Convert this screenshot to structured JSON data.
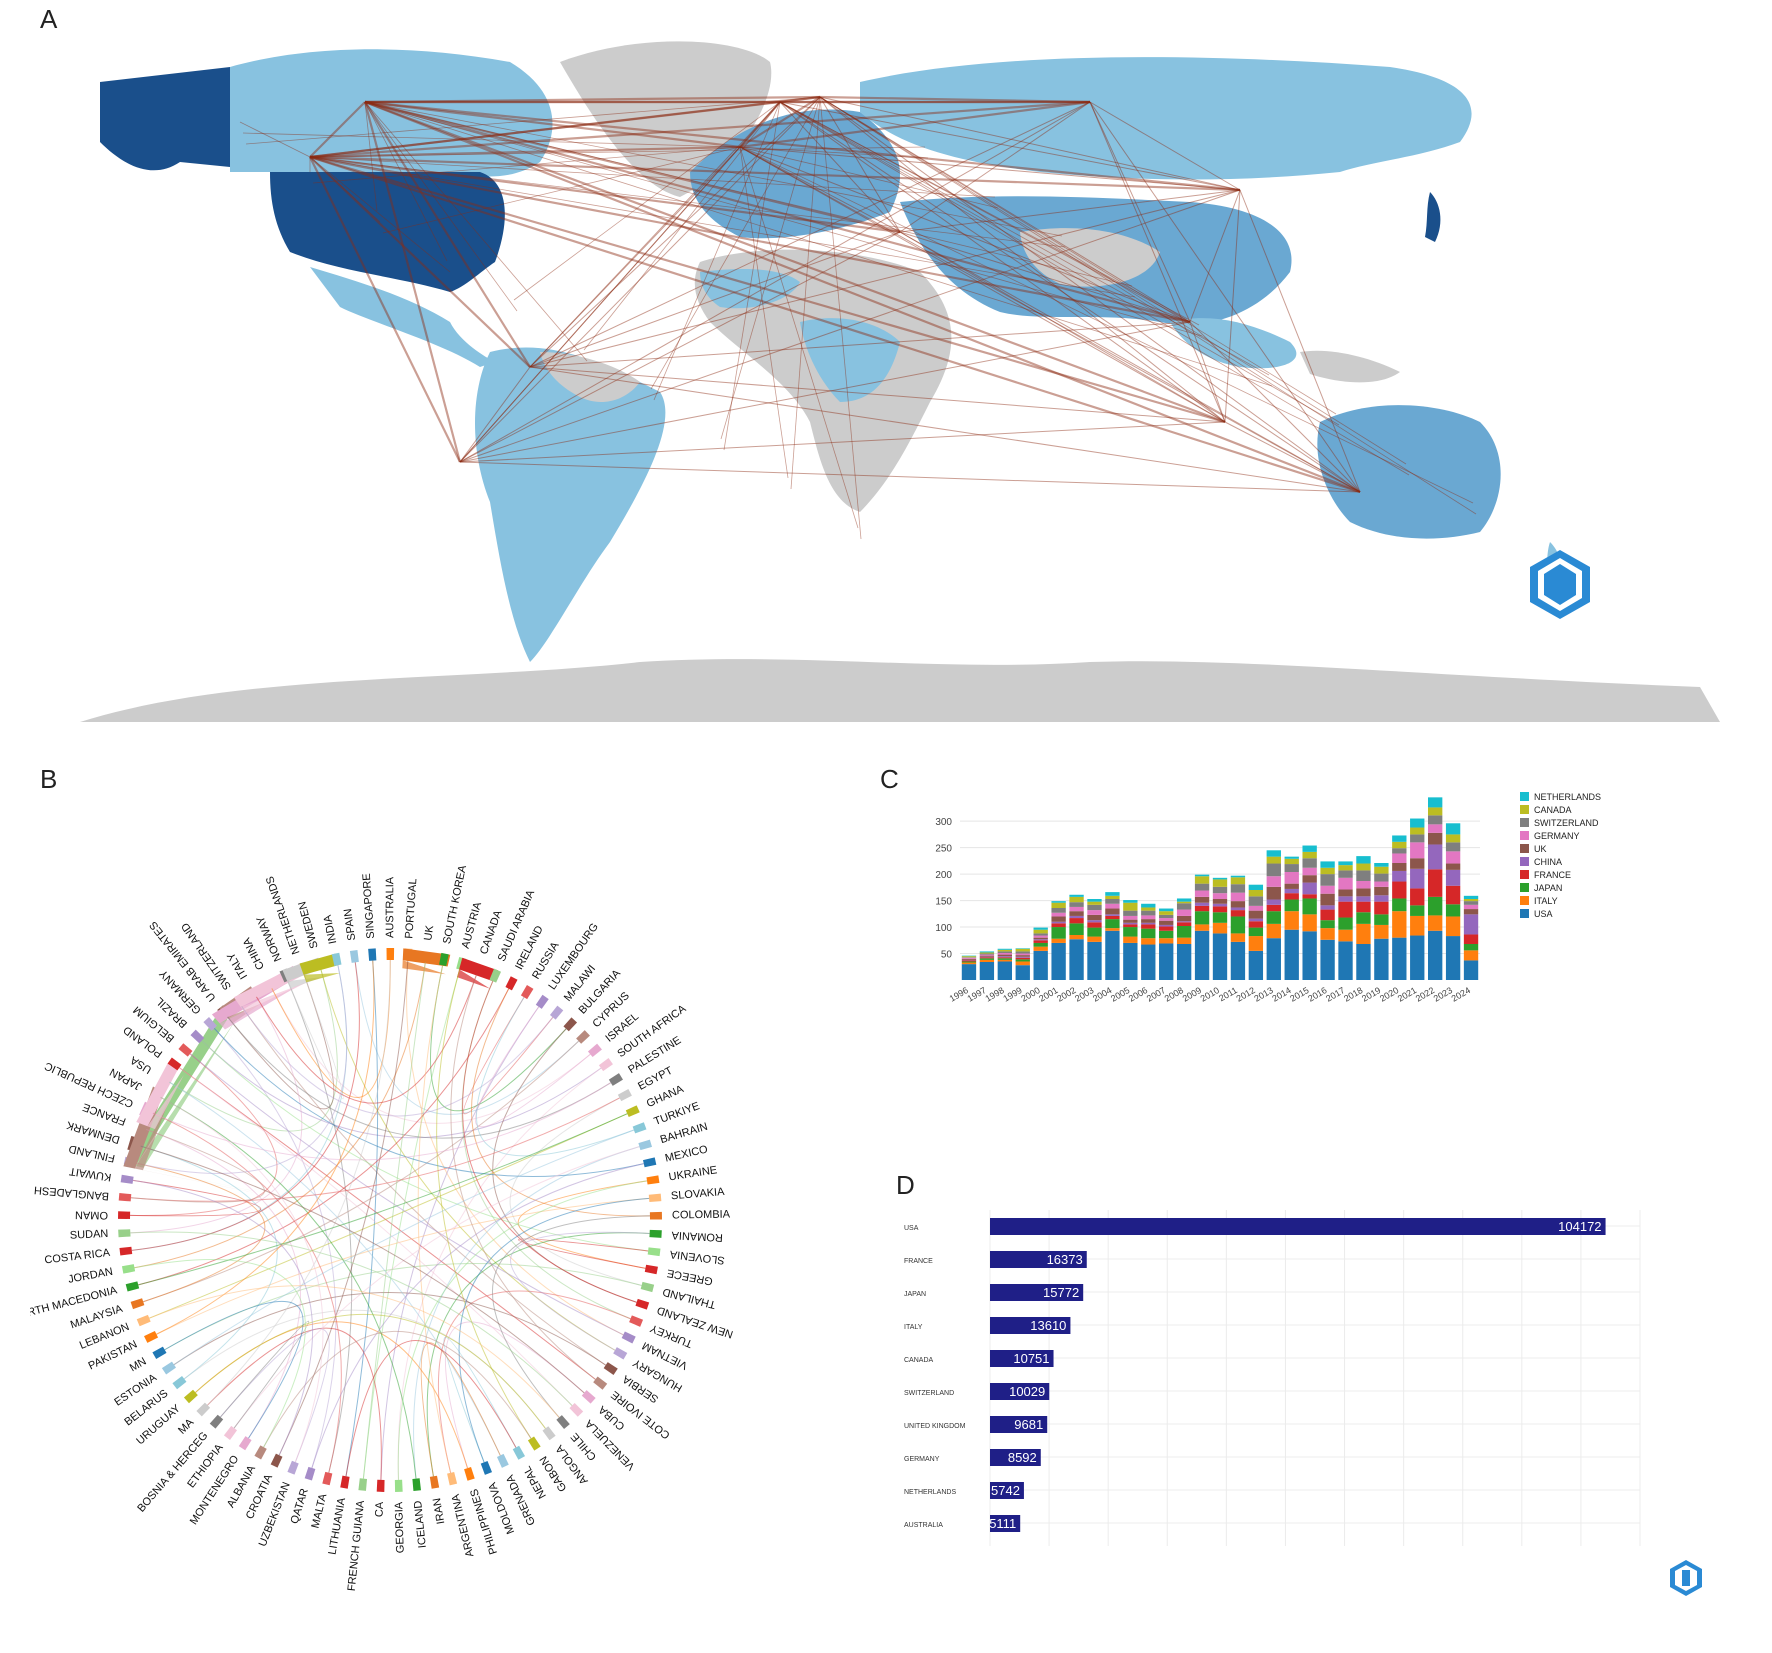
{
  "panels": {
    "a": "A",
    "b": "B",
    "c": "C",
    "d": "D"
  },
  "colors": {
    "land_gray": "#cccccc",
    "light_blue": "#88c2e0",
    "mid_blue": "#6aa8d2",
    "dark_blue": "#1a4f8b",
    "link": "#8b2a12",
    "hbar": "#1f1f87",
    "logo": "#2a8ad4"
  },
  "chord_labels": [
    "USA",
    "POLAND",
    "BELGIUM",
    "BRAZIL",
    "GERMANY",
    "U ARAB EMIRATES",
    "SWITZERLAND",
    "ITALY",
    "CHINA",
    "NORWAY",
    "NETHERLANDS",
    "SWEDEN",
    "INDIA",
    "SPAIN",
    "SINGAPORE",
    "AUSTRALIA",
    "PORTUGAL",
    "UK",
    "SOUTH KOREA",
    "AUSTRIA",
    "CANADA",
    "SAUDI ARABIA",
    "IRELAND",
    "RUSSIA",
    "LUXEMBOURG",
    "MALAWI",
    "BULGARIA",
    "CYPRUS",
    "ISRAEL",
    "SOUTH AFRICA",
    "PALESTINE",
    "EGYPT",
    "GHANA",
    "TURKIYE",
    "BAHRAIN",
    "MEXICO",
    "UKRAINE",
    "SLOVAKIA",
    "COLOMBIA",
    "ROMANIA",
    "SLOVENIA",
    "GREECE",
    "THAILAND",
    "NEW ZEALAND",
    "TURKEY",
    "VIETNAM",
    "HUNGARY",
    "SERBIA",
    "COTE IVOIRE",
    "CUBA",
    "VENEZUELA",
    "CHILE",
    "ANGOLA",
    "GABON",
    "NEPAL",
    "GRENADA",
    "MOLDOVA",
    "PHILIPPINES",
    "ARGENTINA",
    "IRAN",
    "ICELAND",
    "GEORGIA",
    "CA",
    "FRENCH GUIANA",
    "LITHUANIA",
    "MALTA",
    "QATAR",
    "UZBEKISTAN",
    "CROATIA",
    "ALBANIA",
    "MONTENEGRO",
    "ETHIOPIA",
    "BOSNIA & HERCEG",
    "MA",
    "URUGUAY",
    "BELARUS",
    "ESTONIA",
    "MN",
    "PAKISTAN",
    "LEBANON",
    "MALAYSIA",
    "NORTH MACEDONIA",
    "JORDAN",
    "COSTA RICA",
    "SUDAN",
    "OMAN",
    "BANGLADESH",
    "KUWAIT",
    "FINLAND",
    "DENMARK",
    "FRANCE",
    "CZECH REPUBLIC",
    "JAPAN"
  ],
  "chart_data": [
    {
      "type": "bar",
      "stacked": true,
      "categories": [
        "1996",
        "1997",
        "1998",
        "1999",
        "2000",
        "2001",
        "2002",
        "2003",
        "2004",
        "2005",
        "2006",
        "2007",
        "2008",
        "2009",
        "2010",
        "2011",
        "2012",
        "2013",
        "2014",
        "2015",
        "2016",
        "2017",
        "2018",
        "2019",
        "2020",
        "2021",
        "2022",
        "2023",
        "2024"
      ],
      "ylim": [
        0,
        340
      ],
      "yticks": [
        50,
        100,
        150,
        200,
        250,
        300
      ],
      "legend_position": "right",
      "series": [
        {
          "name": "USA",
          "color": "#1f77b4",
          "values": [
            30,
            34,
            35,
            28,
            55,
            70,
            77,
            72,
            93,
            70,
            67,
            69,
            68,
            93,
            88,
            72,
            55,
            79,
            95,
            92,
            76,
            73,
            68,
            78,
            80,
            84,
            93,
            83,
            37
          ]
        },
        {
          "name": "ITALY",
          "color": "#ff7f0e",
          "values": [
            3,
            4,
            3,
            7,
            8,
            8,
            8,
            10,
            5,
            12,
            12,
            10,
            12,
            12,
            20,
            16,
            28,
            27,
            35,
            32,
            22,
            22,
            38,
            26,
            50,
            37,
            29,
            37,
            19
          ]
        },
        {
          "name": "JAPAN",
          "color": "#2ca02c",
          "values": [
            2,
            3,
            3,
            4,
            7,
            22,
            22,
            17,
            17,
            18,
            18,
            14,
            22,
            25,
            20,
            32,
            16,
            24,
            22,
            30,
            15,
            23,
            22,
            20,
            24,
            20,
            35,
            23,
            12
          ]
        },
        {
          "name": "FRANCE",
          "color": "#d62728",
          "values": [
            2,
            2,
            2,
            3,
            5,
            7,
            10,
            10,
            6,
            5,
            8,
            8,
            7,
            10,
            11,
            12,
            12,
            12,
            12,
            8,
            20,
            30,
            20,
            24,
            32,
            32,
            52,
            35,
            18
          ]
        },
        {
          "name": "CHINA",
          "color": "#9467bd",
          "values": [
            1,
            1,
            2,
            2,
            2,
            3,
            4,
            4,
            3,
            3,
            3,
            3,
            2,
            6,
            5,
            5,
            5,
            10,
            8,
            22,
            8,
            10,
            10,
            12,
            20,
            37,
            47,
            30,
            38
          ]
        },
        {
          "name": "UK",
          "color": "#8c564b",
          "values": [
            2,
            2,
            3,
            3,
            3,
            10,
            9,
            10,
            11,
            6,
            7,
            8,
            10,
            11,
            9,
            12,
            15,
            24,
            10,
            14,
            22,
            13,
            15,
            16,
            15,
            20,
            22,
            12,
            10
          ]
        },
        {
          "name": "GERMANY",
          "color": "#e377c2",
          "values": [
            2,
            2,
            3,
            3,
            4,
            7,
            8,
            9,
            9,
            7,
            7,
            5,
            12,
            12,
            11,
            16,
            9,
            20,
            22,
            14,
            15,
            22,
            14,
            10,
            18,
            30,
            16,
            23,
            8
          ]
        },
        {
          "name": "SWITZERLAND",
          "color": "#7f7f7f",
          "values": [
            1,
            2,
            3,
            4,
            4,
            9,
            9,
            10,
            9,
            10,
            9,
            6,
            12,
            13,
            12,
            16,
            18,
            24,
            15,
            18,
            22,
            14,
            20,
            15,
            10,
            15,
            17,
            17,
            7
          ]
        },
        {
          "name": "CANADA",
          "color": "#bcbd22",
          "values": [
            2,
            2,
            3,
            5,
            7,
            10,
            10,
            6,
            6,
            15,
            6,
            7,
            3,
            14,
            14,
            13,
            12,
            13,
            10,
            12,
            12,
            10,
            13,
            13,
            12,
            13,
            15,
            15,
            4
          ]
        },
        {
          "name": "NETHERLANDS",
          "color": "#17becf",
          "values": [
            1,
            2,
            2,
            1,
            4,
            3,
            4,
            5,
            7,
            5,
            7,
            5,
            6,
            3,
            3,
            3,
            10,
            12,
            4,
            12,
            12,
            7,
            14,
            7,
            12,
            17,
            19,
            21,
            6
          ]
        }
      ]
    },
    {
      "type": "bar",
      "orientation": "horizontal",
      "categories": [
        "USA",
        "FRANCE",
        "JAPAN",
        "ITALY",
        "CANADA",
        "SWITZERLAND",
        "UNITED KINGDOM",
        "GERMANY",
        "NETHERLANDS",
        "AUSTRALIA"
      ],
      "values": [
        104172,
        16373,
        15772,
        13610,
        10751,
        10029,
        9681,
        8592,
        5742,
        5111
      ],
      "xlim": [
        0,
        110000
      ],
      "grid": true
    }
  ]
}
